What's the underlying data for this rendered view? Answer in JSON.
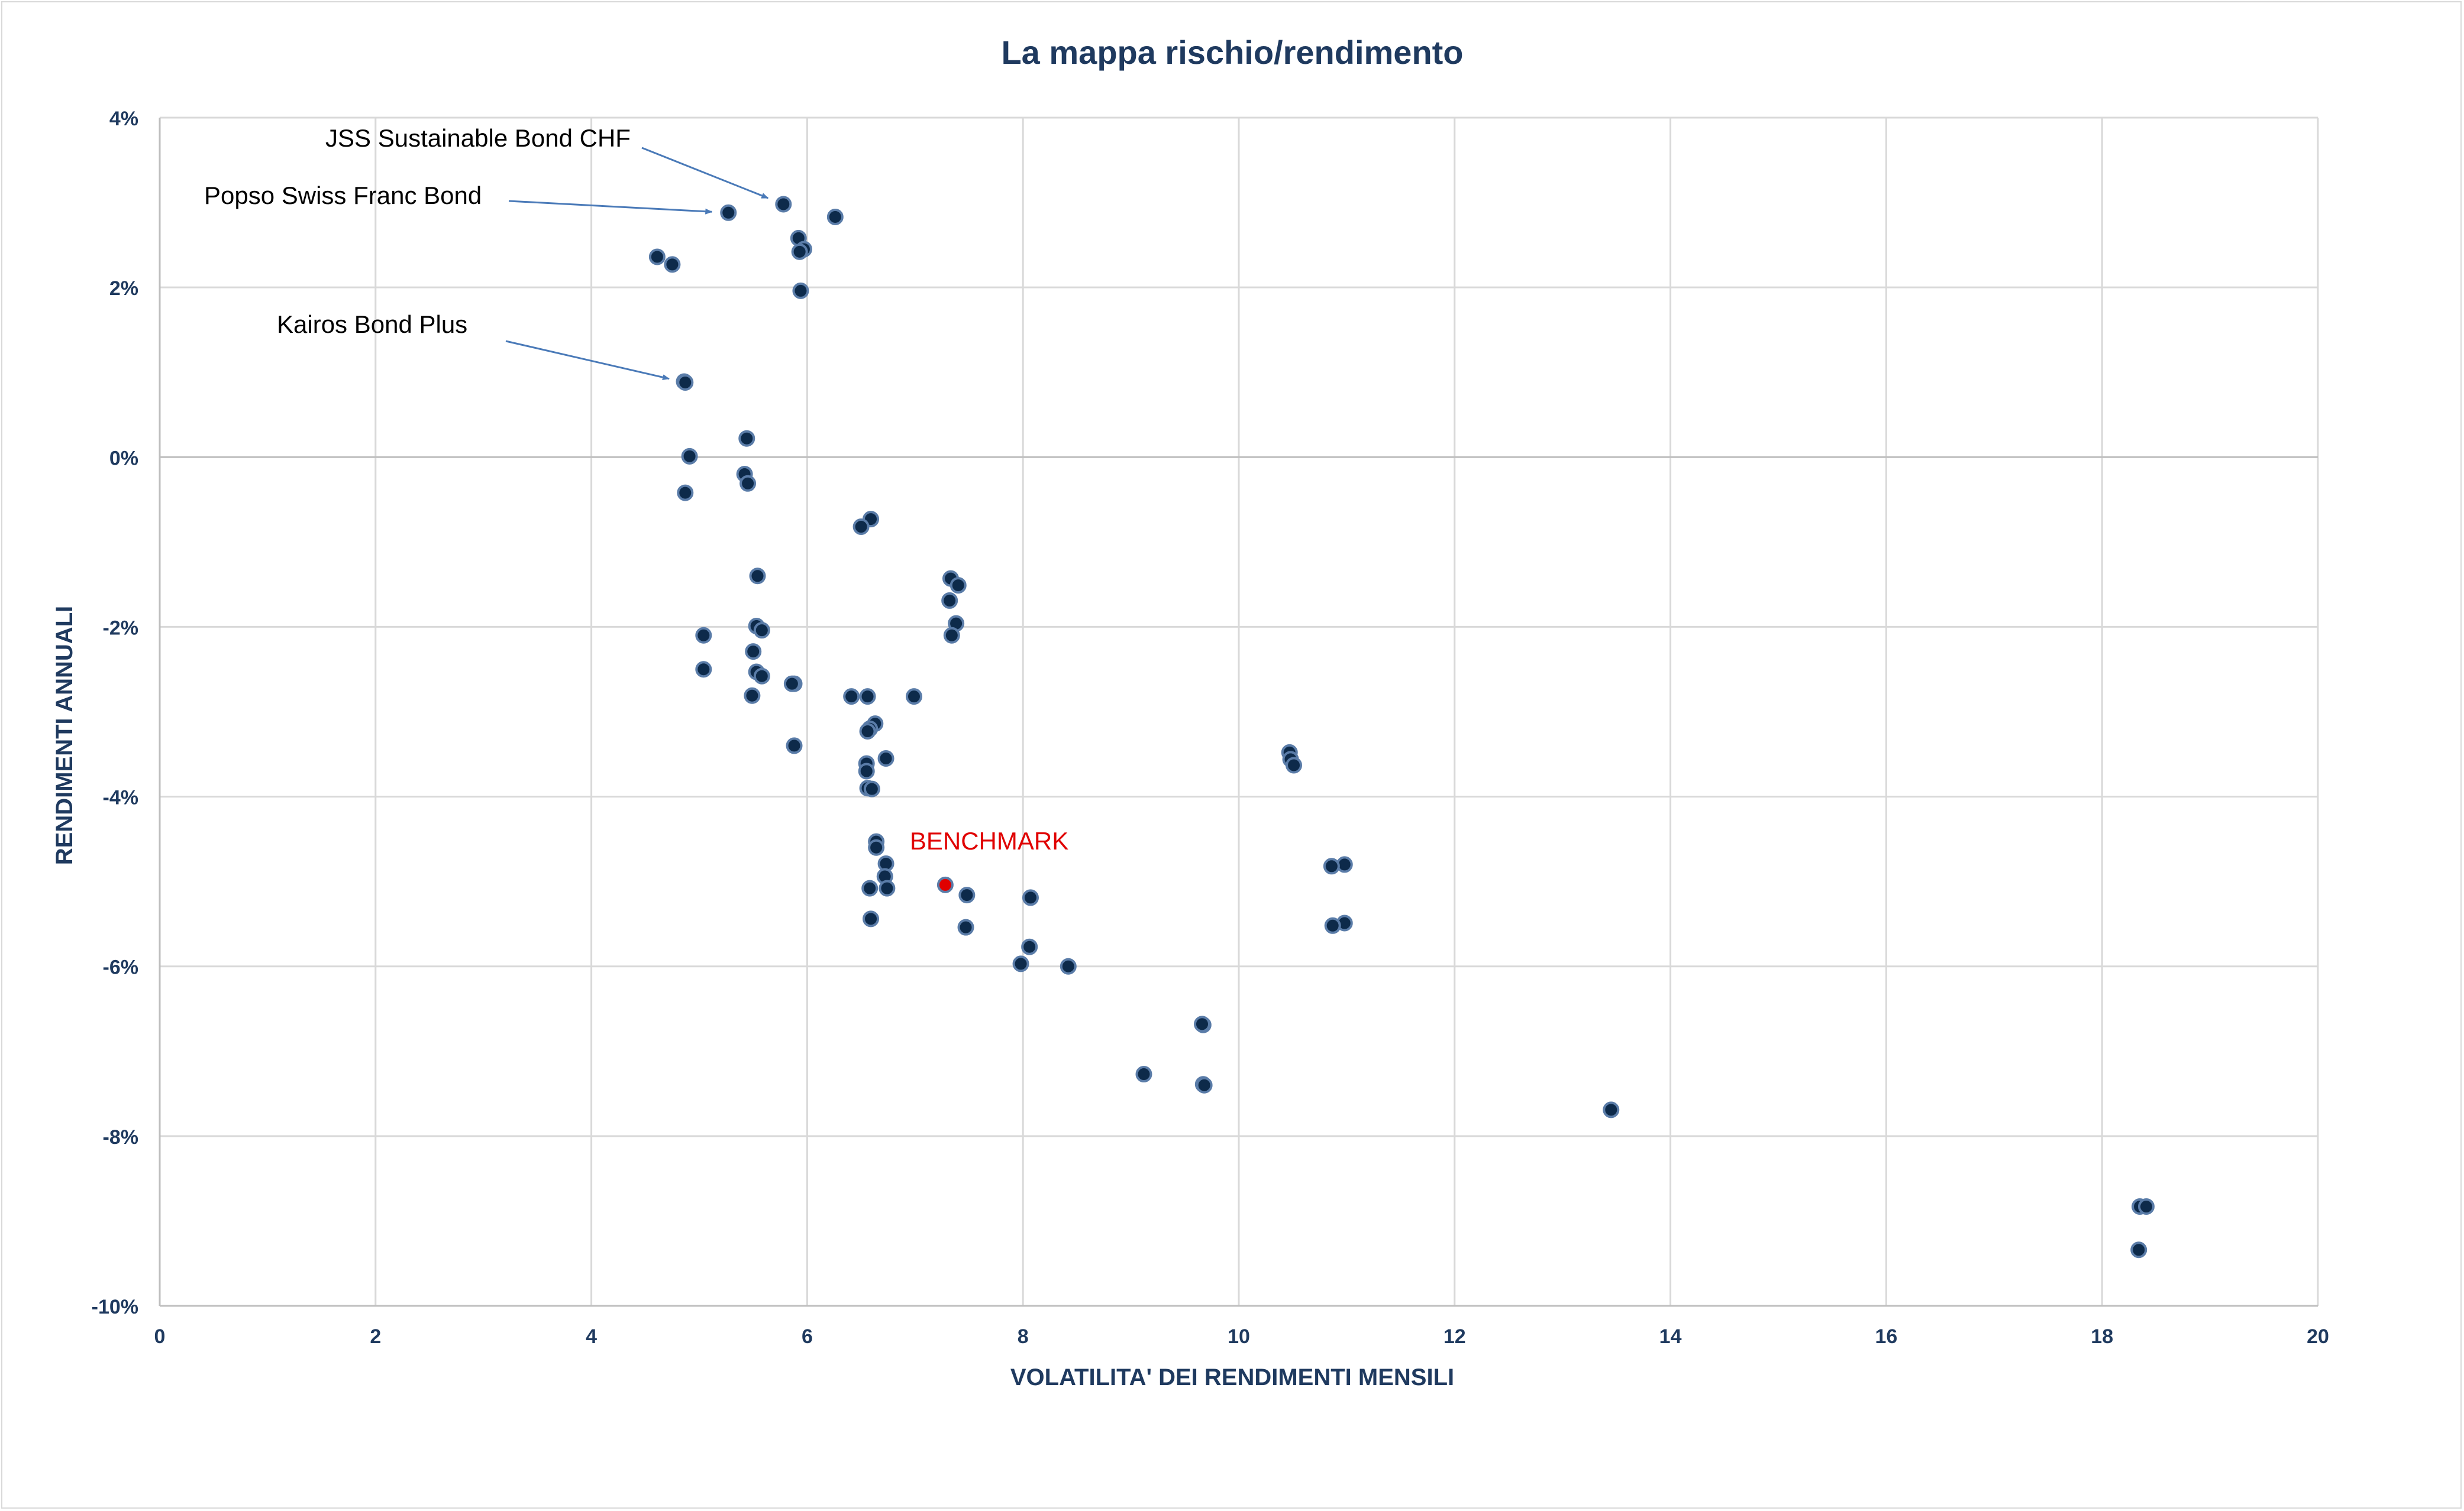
{
  "chart_data": {
    "type": "scatter",
    "title": "La mappa rischio/rendimento",
    "xlabel": "VOLATILITA' DEI RENDIMENTI MENSILI",
    "ylabel": "RENDIMENTI ANNUALI",
    "xlim": [
      0,
      20
    ],
    "ylim": [
      -10,
      4
    ],
    "x_ticks": [
      "0",
      "2",
      "4",
      "6",
      "8",
      "10",
      "12",
      "14",
      "16",
      "18",
      "20"
    ],
    "y_ticks": [
      "4%",
      "2%",
      "0%",
      "-2%",
      "-4%",
      "-6%",
      "-8%",
      "-10%"
    ],
    "grid": true,
    "colors": {
      "point": "#0d2a4a",
      "point_edge": "#5a7ca8",
      "benchmark": "#e00000",
      "text": "#1f3a5f",
      "arrow": "#4a7ab8"
    },
    "points": [
      [
        5.78,
        2.98
      ],
      [
        6.26,
        2.83
      ],
      [
        5.27,
        2.88
      ],
      [
        5.92,
        2.58
      ],
      [
        5.97,
        2.45
      ],
      [
        5.93,
        2.42
      ],
      [
        4.61,
        2.36
      ],
      [
        4.75,
        2.27
      ],
      [
        5.94,
        1.96
      ],
      [
        4.86,
        0.89
      ],
      [
        4.87,
        0.88
      ],
      [
        5.44,
        0.22
      ],
      [
        4.91,
        0.01
      ],
      [
        5.42,
        -0.2
      ],
      [
        5.45,
        -0.31
      ],
      [
        4.87,
        -0.42
      ],
      [
        6.59,
        -0.73
      ],
      [
        6.5,
        -0.82
      ],
      [
        5.54,
        -1.4
      ],
      [
        7.33,
        -1.43
      ],
      [
        7.4,
        -1.51
      ],
      [
        7.32,
        -1.69
      ],
      [
        7.38,
        -1.96
      ],
      [
        7.34,
        -2.1
      ],
      [
        5.53,
        -1.99
      ],
      [
        5.58,
        -2.04
      ],
      [
        5.04,
        -2.1
      ],
      [
        5.5,
        -2.29
      ],
      [
        5.04,
        -2.5
      ],
      [
        5.53,
        -2.53
      ],
      [
        5.58,
        -2.58
      ],
      [
        5.88,
        -2.67
      ],
      [
        5.86,
        -2.67
      ],
      [
        5.49,
        -2.81
      ],
      [
        6.41,
        -2.82
      ],
      [
        6.56,
        -2.82
      ],
      [
        6.99,
        -2.82
      ],
      [
        6.63,
        -3.14
      ],
      [
        6.58,
        -3.2
      ],
      [
        6.56,
        -3.23
      ],
      [
        5.88,
        -3.4
      ],
      [
        6.73,
        -3.55
      ],
      [
        6.55,
        -3.61
      ],
      [
        6.55,
        -3.7
      ],
      [
        6.56,
        -3.9
      ],
      [
        6.6,
        -3.91
      ],
      [
        10.47,
        -3.48
      ],
      [
        10.48,
        -3.56
      ],
      [
        10.51,
        -3.63
      ],
      [
        6.64,
        -4.53
      ],
      [
        6.64,
        -4.6
      ],
      [
        6.73,
        -4.79
      ],
      [
        6.72,
        -4.94
      ],
      [
        6.74,
        -5.08
      ],
      [
        6.58,
        -5.08
      ],
      [
        10.98,
        -4.8
      ],
      [
        10.86,
        -4.82
      ],
      [
        10.98,
        -5.49
      ],
      [
        10.87,
        -5.52
      ],
      [
        7.48,
        -5.16
      ],
      [
        8.07,
        -5.19
      ],
      [
        7.47,
        -5.54
      ],
      [
        6.59,
        -5.44
      ],
      [
        8.06,
        -5.77
      ],
      [
        7.98,
        -5.97
      ],
      [
        8.42,
        -6.0
      ],
      [
        9.67,
        -6.69
      ],
      [
        9.66,
        -6.68
      ],
      [
        9.12,
        -7.27
      ],
      [
        9.67,
        -7.39
      ],
      [
        9.68,
        -7.4
      ],
      [
        13.45,
        -7.69
      ],
      [
        18.35,
        -8.83
      ],
      [
        18.41,
        -8.83
      ],
      [
        18.34,
        -9.34
      ]
    ],
    "benchmark": {
      "label": "BENCHMARK",
      "x": 7.28,
      "y": -5.04
    },
    "annotations": [
      {
        "text": "JSS Sustainable Bond CHF",
        "x": 5.78,
        "y": 2.98
      },
      {
        "text": "Popso Swiss Franc Bond",
        "x": 5.27,
        "y": 2.88
      },
      {
        "text": "Kairos Bond Plus",
        "x": 4.87,
        "y": 0.88
      }
    ]
  }
}
